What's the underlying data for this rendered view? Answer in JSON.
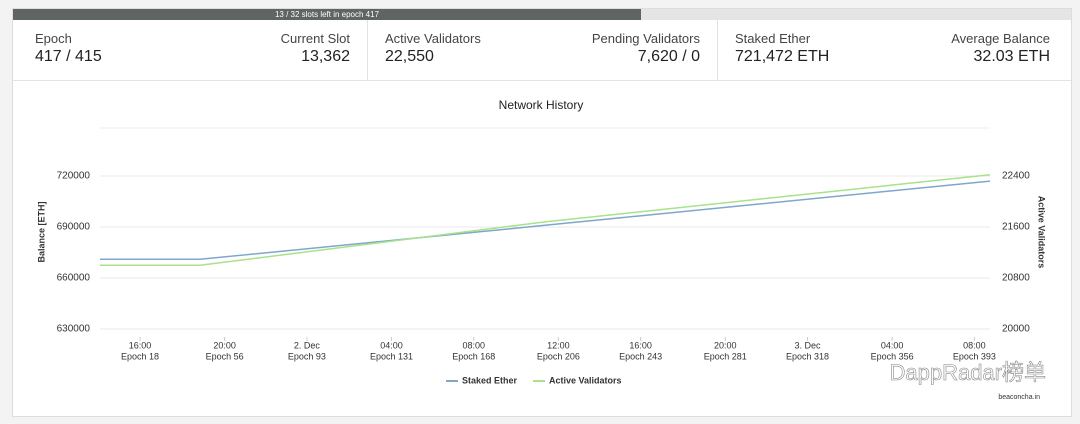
{
  "progress": {
    "text": "13 / 32 slots left in epoch 417"
  },
  "stats": [
    {
      "label": "Epoch",
      "value": "417 / 415"
    },
    {
      "label": "Current Slot",
      "value": "13,362"
    },
    {
      "label": "Active Validators",
      "value": "22,550"
    },
    {
      "label": "Pending Validators",
      "value": "7,620 / 0"
    },
    {
      "label": "Staked Ether",
      "value": "721,472 ETH"
    },
    {
      "label": "Average Balance",
      "value": "32.03 ETH"
    }
  ],
  "chart_data": {
    "type": "line",
    "title": "Network History",
    "y_label": "Balance [ETH]",
    "y2_label": "Active Validators",
    "x": [
      0,
      45,
      200,
      400
    ],
    "series": [
      {
        "name": "Staked Ether",
        "color": "#7fa6cc",
        "values": [
          671000,
          671000,
          691000,
          717000
        ]
      },
      {
        "name": "Active Validators",
        "color": "#a6e38a",
        "axis": "y2",
        "values": [
          21000,
          21000,
          21680,
          22420
        ]
      }
    ],
    "xlim": [
      0,
      400
    ],
    "xticks": [
      {
        "value": 18,
        "label": "16:00",
        "sublabel": "Epoch 18"
      },
      {
        "value": 56,
        "label": "20:00",
        "sublabel": "Epoch 56"
      },
      {
        "value": 93,
        "label": "2. Dec",
        "sublabel": "Epoch 93"
      },
      {
        "value": 131,
        "label": "04:00",
        "sublabel": "Epoch 131"
      },
      {
        "value": 168,
        "label": "08:00",
        "sublabel": "Epoch 168"
      },
      {
        "value": 206,
        "label": "12:00",
        "sublabel": "Epoch 206"
      },
      {
        "value": 243,
        "label": "16:00",
        "sublabel": "Epoch 243"
      },
      {
        "value": 281,
        "label": "20:00",
        "sublabel": "Epoch 281"
      },
      {
        "value": 318,
        "label": "3. Dec",
        "sublabel": "Epoch 318"
      },
      {
        "value": 356,
        "label": "04:00",
        "sublabel": "Epoch 356"
      },
      {
        "value": 393,
        "label": "08:00",
        "sublabel": "Epoch 393"
      }
    ],
    "ylim": [
      630000,
      750000
    ],
    "yticks": [
      630000,
      660000,
      690000,
      720000
    ],
    "y2lim": [
      20000,
      23200
    ],
    "y2ticks": [
      20000,
      20800,
      21600,
      22400
    ],
    "grid": true,
    "legend": "bottom",
    "credit": "beaconcha.in"
  },
  "watermark": "DappRadar榜单"
}
